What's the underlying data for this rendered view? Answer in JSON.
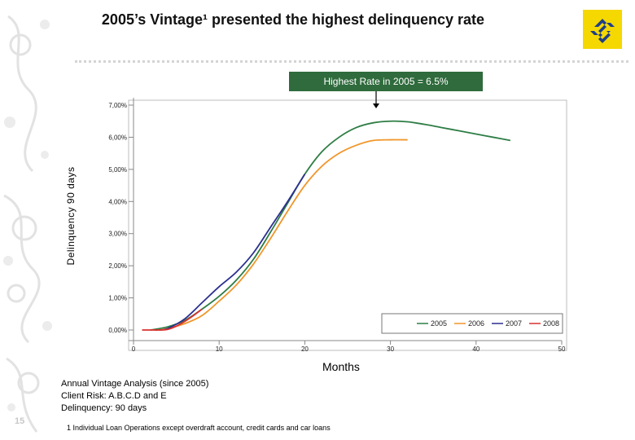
{
  "title": "2005’s Vintage¹ presented the highest delinquency rate",
  "callout": "Highest Rate in 2005 = 6.5%",
  "page_number": "15",
  "notes": [
    "Annual Vintage Analysis (since 2005)",
    "Client Risk: A.B.C.D and E",
    "Delinquency: 90 days"
  ],
  "footnote": "1 Individual Loan Operations except overdraft account, credit cards and car loans",
  "colors": {
    "callout_bg": "#2f6b3c",
    "logo_bg": "#f5d800",
    "logo_fg": "#1f3f8a"
  },
  "icons": {
    "logo": "banco-do-brasil-logo-icon",
    "ornament": "floral-ornament-icon"
  },
  "chart_data": {
    "type": "line",
    "title": "",
    "xlabel": "Months",
    "ylabel": "Delinquency 90 days",
    "xlim": [
      0,
      50
    ],
    "ylim": [
      0,
      7
    ],
    "x_ticks": [
      0,
      10,
      20,
      30,
      40,
      50
    ],
    "y_ticks": [
      0,
      1,
      2,
      3,
      4,
      5,
      6,
      7
    ],
    "y_tick_labels": [
      "0,00%",
      "1,00%",
      "2,00%",
      "3,00%",
      "4,00%",
      "5,00%",
      "6,00%",
      "7,00%"
    ],
    "grid": false,
    "legend": "bottom-right",
    "series": [
      {
        "name": "2005",
        "color": "#2e7d45",
        "x": [
          2,
          4,
          6,
          8,
          10,
          12,
          14,
          16,
          18,
          20,
          22,
          24,
          26,
          28,
          30,
          32,
          34,
          36,
          38,
          40,
          42,
          44
        ],
        "y": [
          0.0,
          0.1,
          0.3,
          0.65,
          1.05,
          1.55,
          2.2,
          3.05,
          3.95,
          4.85,
          5.55,
          6.0,
          6.3,
          6.45,
          6.5,
          6.48,
          6.4,
          6.3,
          6.2,
          6.1,
          6.0,
          5.9
        ]
      },
      {
        "name": "2006",
        "color": "#f0962a",
        "x": [
          3,
          4,
          6,
          8,
          10,
          12,
          14,
          16,
          18,
          20,
          22,
          24,
          26,
          28,
          30,
          32
        ],
        "y": [
          0.0,
          0.05,
          0.2,
          0.45,
          0.9,
          1.4,
          2.05,
          2.85,
          3.7,
          4.5,
          5.1,
          5.5,
          5.75,
          5.9,
          5.92,
          5.92
        ]
      },
      {
        "name": "2007",
        "color": "#2b2f8f",
        "x": [
          3,
          4,
          6,
          8,
          10,
          12,
          14,
          16,
          18,
          20
        ],
        "y": [
          0.0,
          0.05,
          0.35,
          0.85,
          1.35,
          1.8,
          2.4,
          3.2,
          4.0,
          4.85
        ]
      },
      {
        "name": "2008",
        "color": "#d9302c",
        "x": [
          1,
          2,
          3,
          4,
          5,
          6,
          7,
          8
        ],
        "y": [
          0.0,
          0.0,
          0.0,
          0.02,
          0.12,
          0.27,
          0.45,
          0.65
        ]
      }
    ]
  }
}
